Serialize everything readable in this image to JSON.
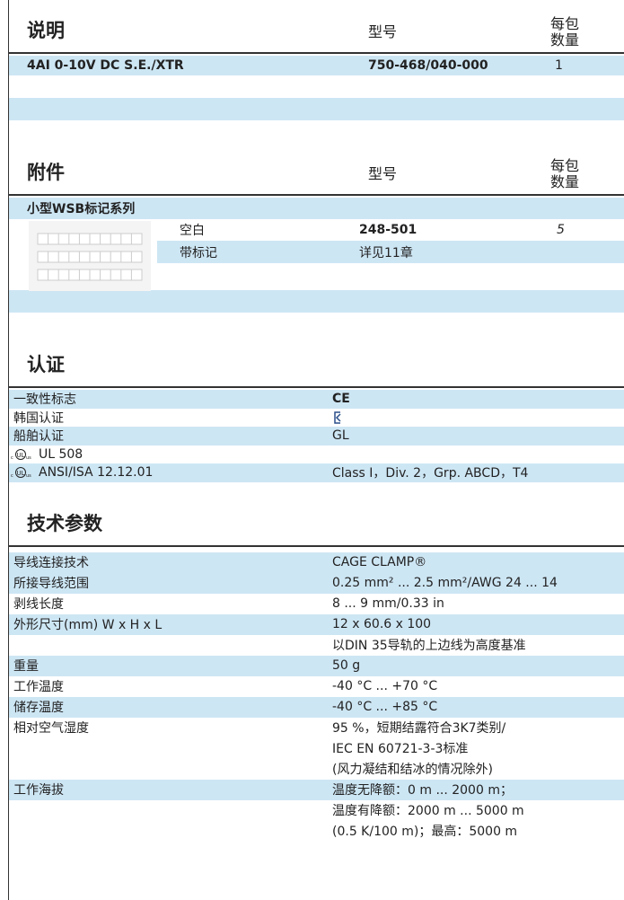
{
  "product": {
    "headers": [
      "说明",
      "型号",
      "每包数量"
    ],
    "rows": [
      {
        "description": "4AI 0-10V DC S.E./XTR",
        "item_no": "750-468/040-000",
        "pack_unit": "1"
      }
    ]
  },
  "accessories": {
    "headers": [
      "附件",
      "型号",
      "每包数量"
    ],
    "group": "小型WSB标记系列",
    "rows": [
      {
        "description": "空白",
        "item_no": "248-501",
        "pack_unit": "5"
      },
      {
        "description": "带标记",
        "item_no": "详见11章"
      }
    ]
  },
  "approvals": {
    "title": "认证",
    "rows": [
      {
        "label": "一致性标志",
        "value": "CE"
      },
      {
        "label": "韩国认证"
      },
      {
        "label": "船舶认证",
        "value": "GL"
      },
      {
        "label": "UL 508"
      },
      {
        "label": "ANSI/ISA 12.12.01",
        "value": "Class I，Div. 2，Grp. ABCD，T4"
      }
    ]
  },
  "technical_data": {
    "title": "技术参数",
    "rows": [
      {
        "label": "导线连接技术",
        "value": "CAGE CLAMP®"
      },
      {
        "label": "所接导线范围",
        "value": "0.25 mm² ... 2.5 mm²/AWG 24 ... 14"
      },
      {
        "label": "剥线长度",
        "value": "8 ... 9 mm/0.33 in"
      },
      {
        "label": "外形尺寸(mm) W x H x L",
        "value": "12 x 60.6 x 100"
      },
      {
        "value": "以DIN 35导轨的上边线为高度基准"
      },
      {
        "label": "重量",
        "value": "50 g"
      },
      {
        "label": "工作温度",
        "value": "-40 °C ... +70 °C"
      },
      {
        "label": "储存温度",
        "value": "-40 °C ... +85 °C"
      },
      {
        "label": "相对空气湿度",
        "value": "95 %，短期结露符合3K7类别/"
      },
      {
        "value": "IEC EN 60721-3-3标准"
      },
      {
        "value": "(风力凝结和结冰的情况除外)"
      },
      {
        "label": "工作海拔",
        "value": "温度无降额：0 m ... 2000 m；"
      },
      {
        "value": "温度有降额：2000 m ... 5000 m"
      },
      {
        "value": "(0.5 K/100 m)；最高：5000 m"
      }
    ]
  }
}
